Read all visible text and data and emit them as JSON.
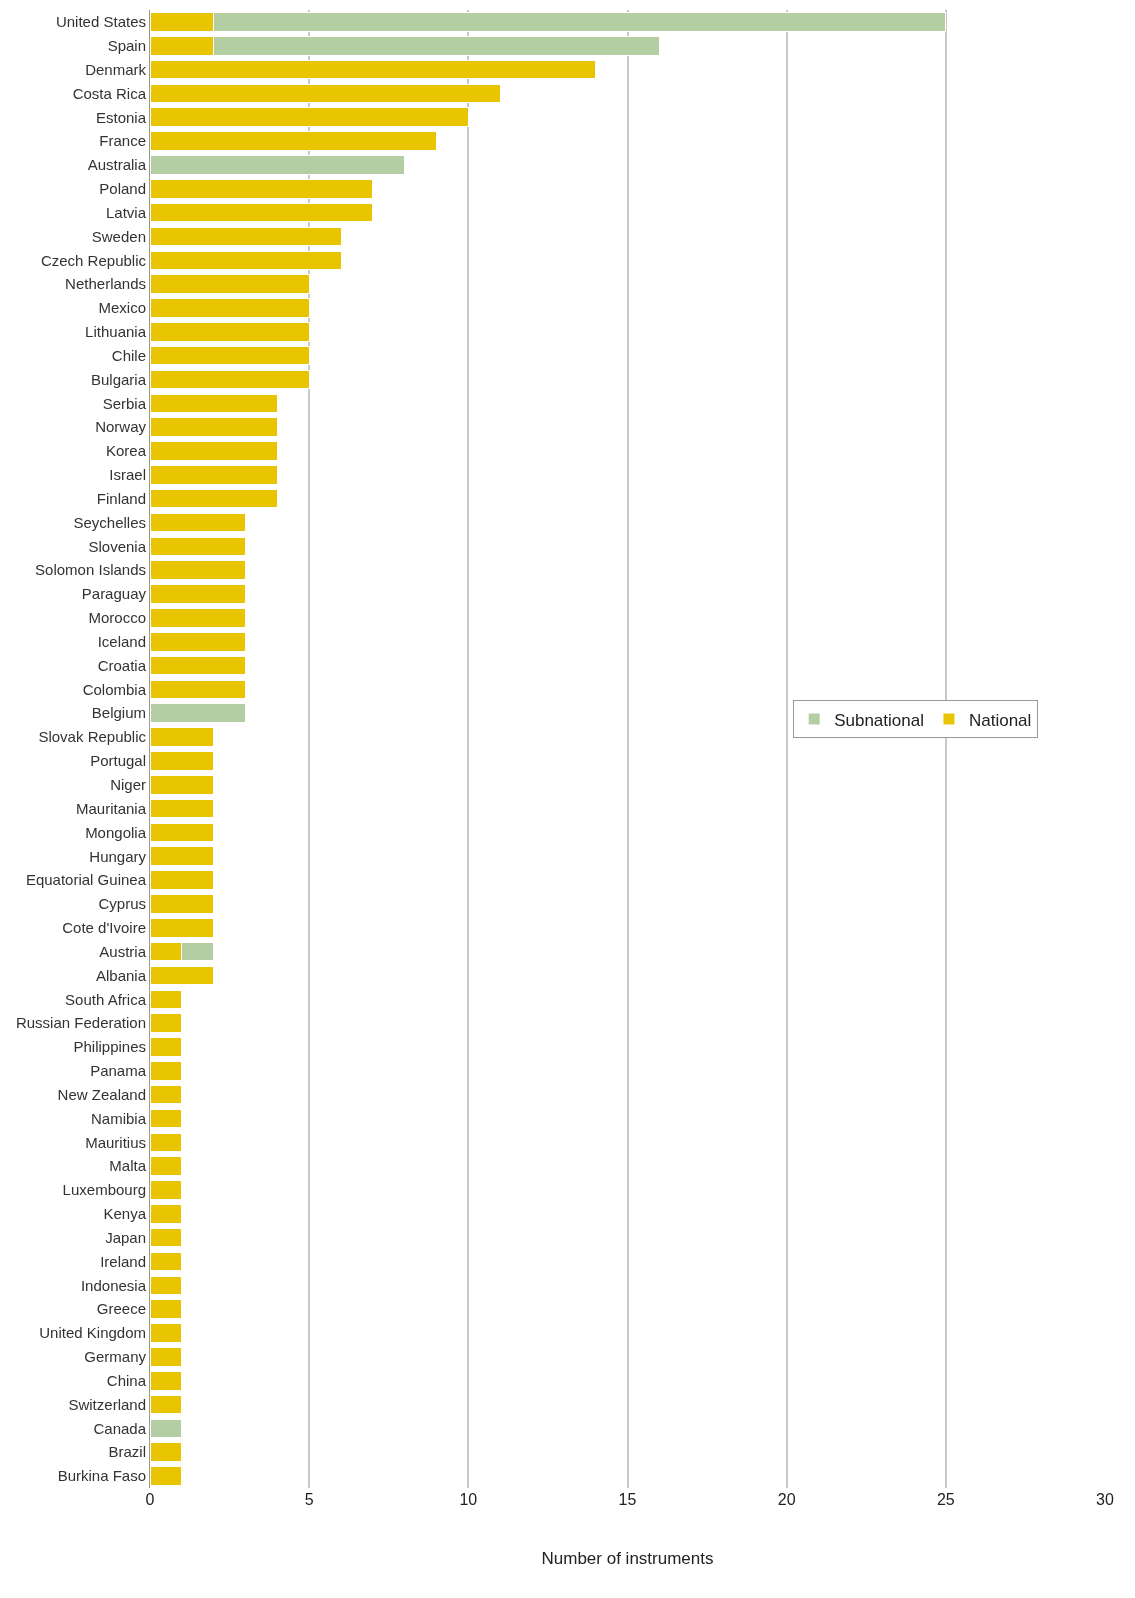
{
  "chart_data": {
    "type": "bar",
    "orientation": "horizontal",
    "stacked": true,
    "xlabel": "Number of instruments",
    "categories": [
      "United States",
      "Spain",
      "Denmark",
      "Costa Rica",
      "Estonia",
      "France",
      "Australia",
      "Poland",
      "Latvia",
      "Sweden",
      "Czech Republic",
      "Netherlands",
      "Mexico",
      "Lithuania",
      "Chile",
      "Bulgaria",
      "Serbia",
      "Norway",
      "Korea",
      "Israel",
      "Finland",
      "Seychelles",
      "Slovenia",
      "Solomon Islands",
      "Paraguay",
      "Morocco",
      "Iceland",
      "Croatia",
      "Colombia",
      "Belgium",
      "Slovak Republic",
      "Portugal",
      "Niger",
      "Mauritania",
      "Mongolia",
      "Hungary",
      "Equatorial Guinea",
      "Cyprus",
      "Cote d'Ivoire",
      "Austria",
      "Albania",
      "South Africa",
      "Russian Federation",
      "Philippines",
      "Panama",
      "New Zealand",
      "Namibia",
      "Mauritius",
      "Malta",
      "Luxembourg",
      "Kenya",
      "Japan",
      "Ireland",
      "Indonesia",
      "Greece",
      "United Kingdom",
      "Germany",
      "China",
      "Switzerland",
      "Canada",
      "Brazil",
      "Burkina Faso"
    ],
    "series": [
      {
        "name": "National",
        "color": "#e9c400",
        "values": [
          2,
          2,
          14,
          11,
          10,
          9,
          null,
          7,
          7,
          6,
          6,
          5,
          5,
          5,
          5,
          5,
          4,
          4,
          4,
          4,
          4,
          3,
          3,
          3,
          3,
          3,
          3,
          3,
          3,
          null,
          2,
          2,
          2,
          2,
          2,
          2,
          2,
          2,
          2,
          1,
          2,
          1,
          1,
          1,
          1,
          1,
          1,
          1,
          1,
          1,
          1,
          1,
          1,
          1,
          1,
          1,
          1,
          1,
          1,
          null,
          1,
          1
        ]
      },
      {
        "name": "Subnational",
        "color": "#b4cea4",
        "values": [
          23,
          14,
          null,
          null,
          null,
          null,
          8,
          null,
          null,
          null,
          null,
          null,
          null,
          null,
          null,
          null,
          null,
          null,
          null,
          null,
          null,
          null,
          null,
          null,
          null,
          null,
          null,
          null,
          null,
          3,
          null,
          null,
          null,
          null,
          null,
          null,
          null,
          null,
          null,
          1,
          null,
          null,
          null,
          null,
          null,
          null,
          null,
          null,
          null,
          null,
          null,
          null,
          null,
          null,
          null,
          null,
          null,
          null,
          null,
          1,
          null,
          null
        ]
      }
    ],
    "xlim": [
      0,
      30
    ],
    "xticks": [
      0,
      5,
      10,
      15,
      20,
      25,
      30
    ],
    "grid": "x",
    "legend": "right"
  }
}
